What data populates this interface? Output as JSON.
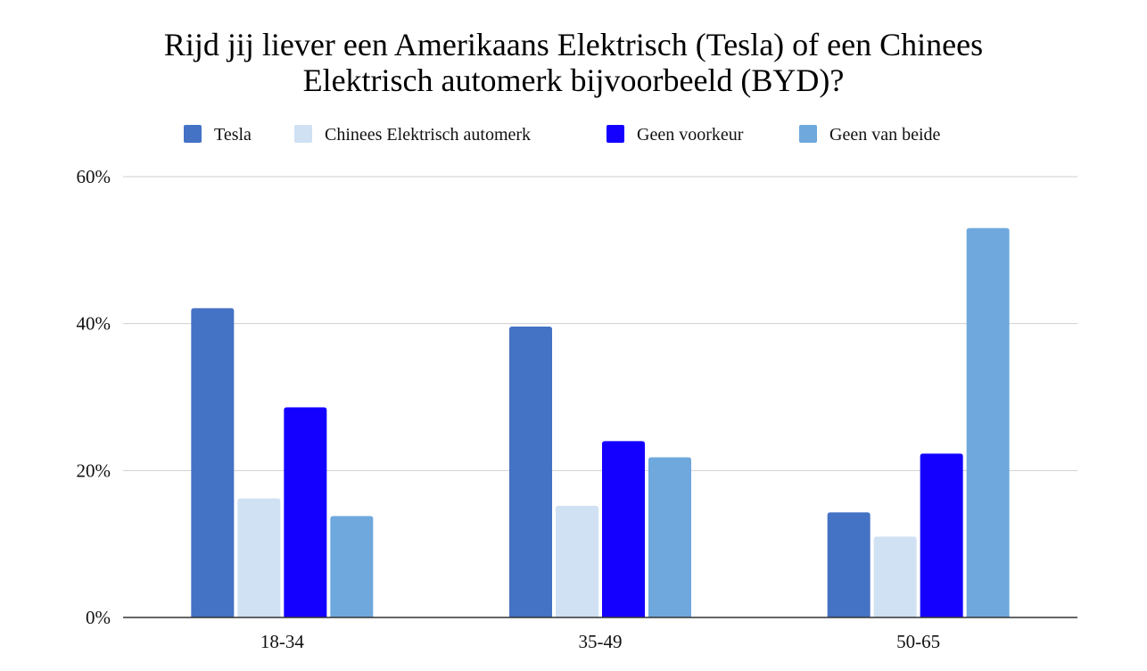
{
  "chart_data": {
    "type": "bar",
    "title_lines": [
      "Rijd jij liever een Amerikaans Elektrisch (Tesla) of een Chinees",
      "Elektrisch automerk bijvoorbeeld  (BYD)?"
    ],
    "categories": [
      "18-34",
      "35-49",
      "50-65"
    ],
    "series": [
      {
        "name": "Tesla",
        "color": "#4472c4",
        "values": [
          42.1,
          39.6,
          14.3
        ]
      },
      {
        "name": "Chinees Elektrisch automerk",
        "color": "#cfe1f3",
        "values": [
          16.2,
          15.2,
          11.0
        ]
      },
      {
        "name": "Geen voorkeur",
        "color": "#1400ff",
        "values": [
          28.6,
          24.0,
          22.3
        ]
      },
      {
        "name": "Geen van beide",
        "color": "#6fa8dc",
        "values": [
          13.8,
          21.8,
          53.0
        ]
      }
    ],
    "ylim": [
      0,
      60
    ],
    "yticks": [
      0,
      20,
      40,
      60
    ],
    "ytick_labels": [
      "0%",
      "20%",
      "40%",
      "60%"
    ],
    "grid": true,
    "legend_position": "top"
  }
}
